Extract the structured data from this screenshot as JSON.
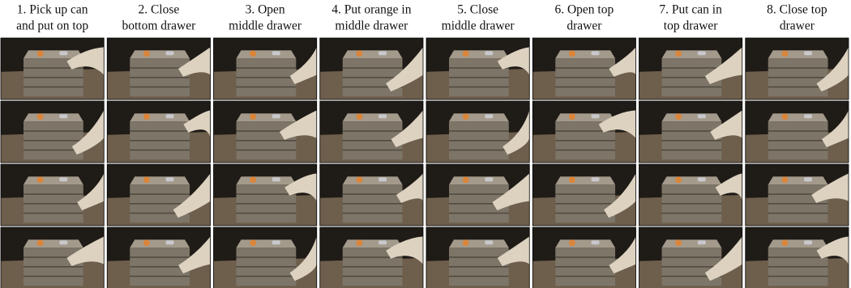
{
  "columns": [
    {
      "title_lines": [
        "1. Pick up can",
        "and put on top"
      ]
    },
    {
      "title_lines": [
        "2. Close",
        "bottom drawer"
      ]
    },
    {
      "title_lines": [
        "3. Open",
        "middle drawer"
      ]
    },
    {
      "title_lines": [
        "4. Put orange in",
        "middle drawer"
      ]
    },
    {
      "title_lines": [
        "5. Close",
        "middle drawer"
      ]
    },
    {
      "title_lines": [
        "6. Open top",
        "drawer"
      ]
    },
    {
      "title_lines": [
        "7. Put can in",
        "top drawer"
      ]
    },
    {
      "title_lines": [
        "8. Close top",
        "drawer"
      ]
    }
  ]
}
